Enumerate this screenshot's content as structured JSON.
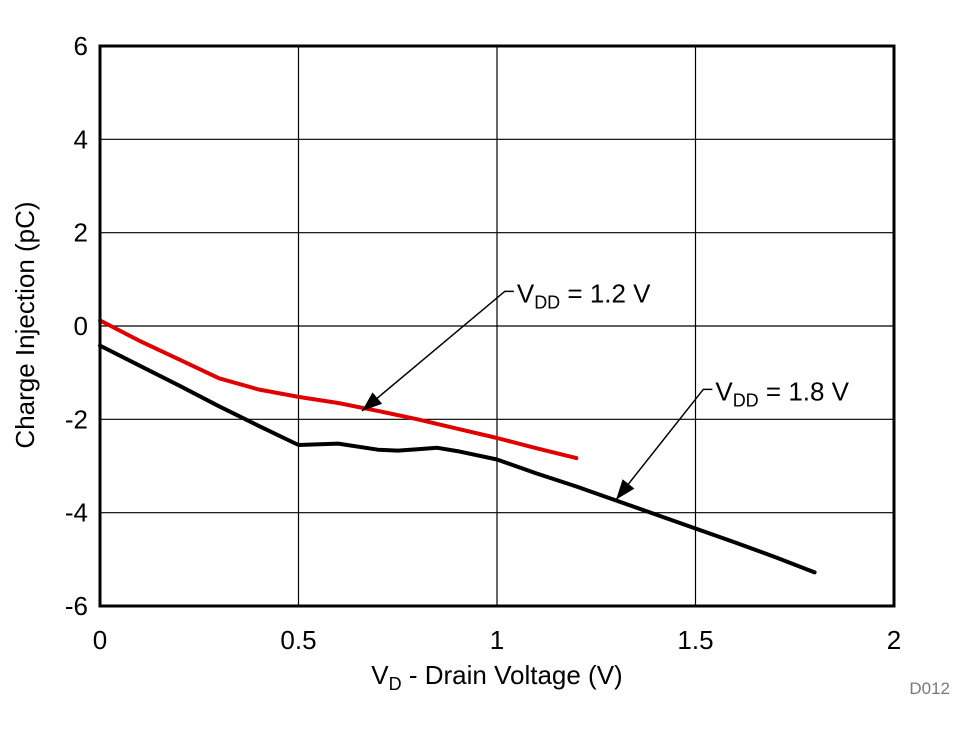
{
  "chart_data": {
    "type": "line",
    "title": "",
    "xlabel": {
      "main": "V",
      "sub": "D",
      "rest": " - Drain Voltage (V)"
    },
    "ylabel": "Charge Injection (pC)",
    "xlim": [
      0,
      2
    ],
    "ylim": [
      -6,
      6
    ],
    "xticks": [
      0,
      0.5,
      1,
      1.5,
      2
    ],
    "xtick_labels": [
      "0",
      "0.5",
      "1",
      "1.5",
      "2"
    ],
    "yticks": [
      -6,
      -4,
      -2,
      0,
      2,
      4,
      6
    ],
    "ytick_labels": [
      "-6",
      "-4",
      "-2",
      "0",
      "2",
      "4",
      "6"
    ],
    "grid": true,
    "series": [
      {
        "name": "VDD = 1.8 V",
        "color": "#000000",
        "x": [
          0,
          0.1,
          0.2,
          0.3,
          0.4,
          0.5,
          0.6,
          0.7,
          0.75,
          0.8,
          0.85,
          0.9,
          1.0,
          1.1,
          1.2,
          1.3,
          1.4,
          1.5,
          1.6,
          1.7,
          1.8
        ],
        "y": [
          -0.42,
          -0.85,
          -1.28,
          -1.72,
          -2.14,
          -2.55,
          -2.52,
          -2.65,
          -2.67,
          -2.64,
          -2.61,
          -2.68,
          -2.86,
          -3.16,
          -3.44,
          -3.74,
          -4.04,
          -4.34,
          -4.64,
          -4.95,
          -5.28
        ]
      },
      {
        "name": "VDD = 1.2 V",
        "color": "#e00000",
        "x": [
          0,
          0.1,
          0.2,
          0.3,
          0.4,
          0.5,
          0.6,
          0.7,
          0.8,
          0.9,
          1.0,
          1.1,
          1.2
        ],
        "y": [
          0.12,
          -0.32,
          -0.72,
          -1.12,
          -1.36,
          -1.52,
          -1.65,
          -1.82,
          -2.0,
          -2.2,
          -2.4,
          -2.62,
          -2.83
        ]
      }
    ],
    "annotations": [
      {
        "series": "VDD = 1.2 V",
        "main": "V",
        "sub": "DD",
        "rest": " = 1.2 V",
        "text_at": [
          1.05,
          0.7
        ],
        "arrow_to": [
          0.66,
          -1.82
        ]
      },
      {
        "series": "VDD = 1.8 V",
        "main": "V",
        "sub": "DD",
        "rest": " = 1.8 V",
        "text_at": [
          1.55,
          -1.4
        ],
        "arrow_to": [
          1.3,
          -3.72
        ]
      }
    ]
  },
  "figure_code": "D012"
}
